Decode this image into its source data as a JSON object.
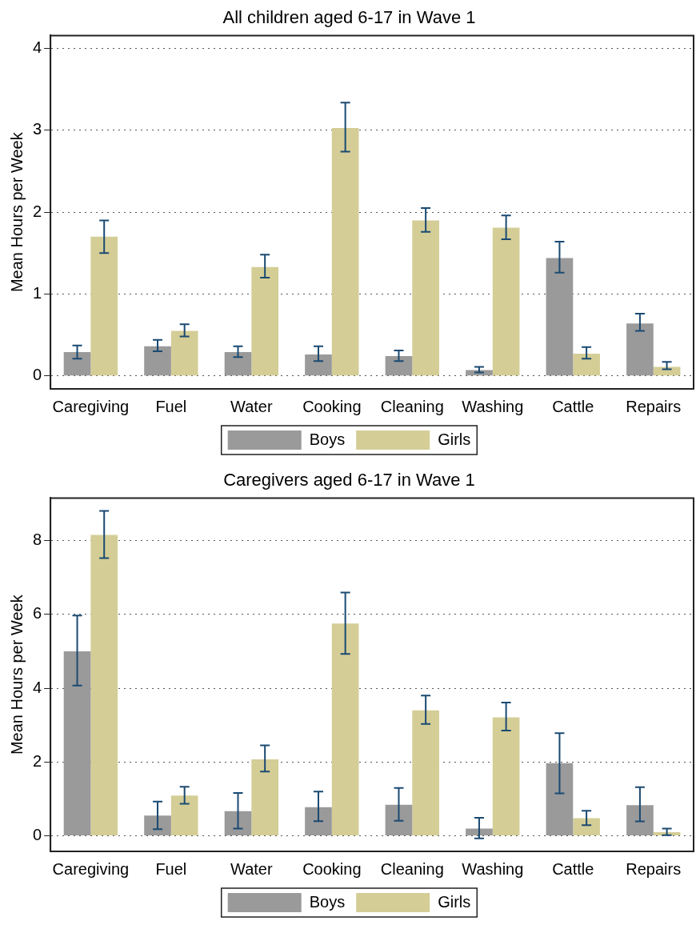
{
  "chart_data": [
    {
      "type": "bar",
      "title": "All children aged 6-17 in Wave 1",
      "ylabel": "Mean Hours per Week",
      "categories": [
        "Caregiving",
        "Fuel",
        "Water",
        "Cooking",
        "Cleaning",
        "Washing",
        "Cattle",
        "Repairs"
      ],
      "series": [
        {
          "name": "Boys",
          "color": "#9a9a9a",
          "values": [
            0.29,
            0.36,
            0.29,
            0.26,
            0.24,
            0.07,
            1.44,
            0.64
          ],
          "errors": [
            [
              0.21,
              0.37
            ],
            [
              0.3,
              0.44
            ],
            [
              0.23,
              0.36
            ],
            [
              0.18,
              0.36
            ],
            [
              0.18,
              0.31
            ],
            [
              0.04,
              0.11
            ],
            [
              1.26,
              1.64
            ],
            [
              0.55,
              0.76
            ]
          ]
        },
        {
          "name": "Girls",
          "color": "#d4cd96",
          "values": [
            1.7,
            0.55,
            1.33,
            3.03,
            1.9,
            1.81,
            0.27,
            0.11
          ],
          "errors": [
            [
              1.5,
              1.9
            ],
            [
              0.48,
              0.63
            ],
            [
              1.2,
              1.48
            ],
            [
              2.74,
              3.34
            ],
            [
              1.76,
              2.05
            ],
            [
              1.67,
              1.96
            ],
            [
              0.21,
              0.35
            ],
            [
              0.08,
              0.17
            ]
          ]
        }
      ],
      "ylim": [
        -0.16,
        4.16
      ],
      "yticks": [
        0,
        1,
        2,
        3,
        4
      ],
      "grid": "y",
      "legend": "bottom"
    },
    {
      "type": "bar",
      "title": "Caregivers aged 6-17 in Wave 1",
      "ylabel": "Mean Hours per Week",
      "categories": [
        "Caregiving",
        "Fuel",
        "Water",
        "Cooking",
        "Cleaning",
        "Washing",
        "Cattle",
        "Repairs"
      ],
      "series": [
        {
          "name": "Boys",
          "color": "#9a9a9a",
          "values": [
            5.0,
            0.55,
            0.67,
            0.78,
            0.84,
            0.2,
            1.97,
            0.83
          ],
          "errors": [
            [
              4.07,
              5.97
            ],
            [
              0.18,
              0.93
            ],
            [
              0.2,
              1.16
            ],
            [
              0.4,
              1.2
            ],
            [
              0.41,
              1.3
            ],
            [
              -0.07,
              0.49
            ],
            [
              1.15,
              2.78
            ],
            [
              0.39,
              1.32
            ]
          ]
        },
        {
          "name": "Girls",
          "color": "#d4cd96",
          "values": [
            8.15,
            1.09,
            2.07,
            5.75,
            3.4,
            3.21,
            0.48,
            0.1
          ],
          "errors": [
            [
              7.52,
              8.8
            ],
            [
              0.87,
              1.33
            ],
            [
              1.74,
              2.45
            ],
            [
              4.93,
              6.59
            ],
            [
              3.03,
              3.8
            ],
            [
              2.85,
              3.61
            ],
            [
              0.29,
              0.68
            ],
            [
              0.02,
              0.2
            ]
          ]
        }
      ],
      "ylim": [
        -0.42,
        9.15
      ],
      "yticks": [
        0,
        2,
        4,
        6,
        8
      ],
      "grid": "y",
      "legend": "bottom"
    }
  ]
}
